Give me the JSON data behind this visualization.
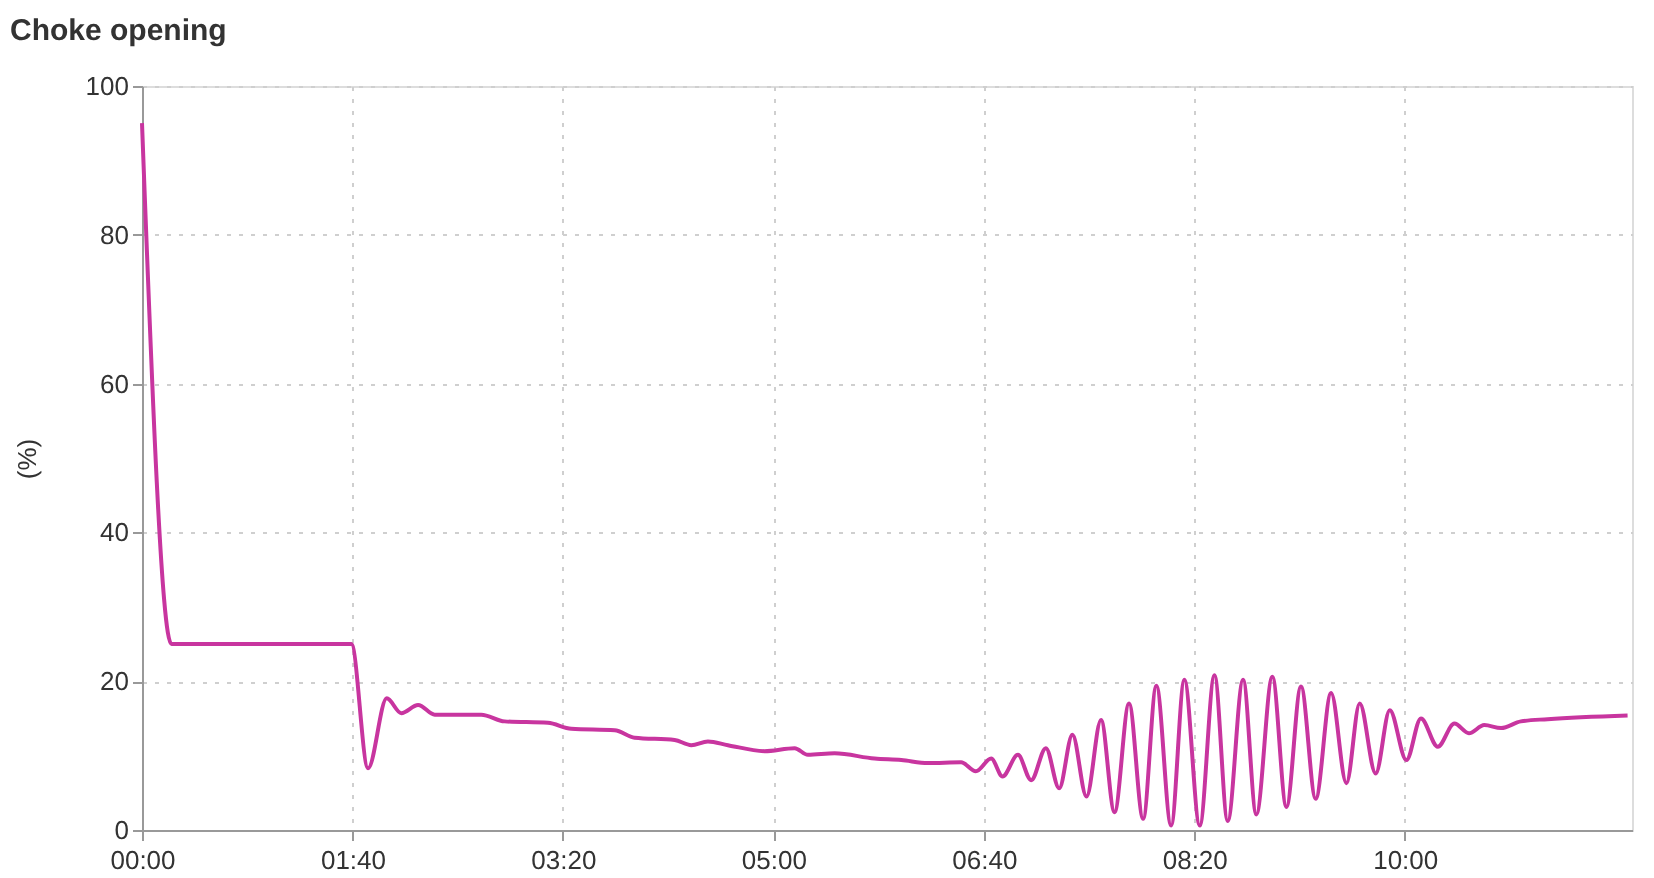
{
  "chart_data": {
    "type": "line",
    "title": "Choke opening",
    "ylabel": "(%)",
    "x": [
      0,
      14,
      99.5,
      107.4,
      116.3,
      123.2,
      131.2,
      139.1,
      161.2,
      172.3,
      192.9,
      204,
      224.6,
      234.1,
      253.1,
      261,
      268.9,
      278.4,
      295.8,
      310.1,
      316.4,
      329.1,
      348.1,
      360.8,
      373.4,
      389.2,
      396.2,
      403.5,
      408.9,
      416.2,
      422.5,
      429.5,
      435.8,
      442.1,
      448.8,
      455.7,
      462.1,
      469.0,
      475.7,
      482.0,
      489.0,
      495.3,
      502.6,
      509.6,
      515.9,
      523.2,
      529.5,
      537.1,
      543.8,
      550.7,
      557.7,
      565.0,
      572.3,
      578.6,
      586.2,
      592.9,
      600.8,
      607.7,
      615.7,
      623.6,
      630.5,
      637.8,
      645.8,
      655.2,
      667.9,
      705.9
    ],
    "series": [
      {
        "color": "#c8359f",
        "values": [
          95,
          25,
          25,
          8.3,
          17.7,
          15.7,
          16.8,
          15.5,
          15.5,
          14.6,
          14.4,
          13.6,
          13.4,
          12.4,
          12.1,
          11.4,
          11.9,
          11.4,
          10.6,
          11.0,
          10.1,
          10.3,
          9.6,
          9.4,
          9.0,
          9.1,
          7.9,
          9.6,
          7.2,
          10.1,
          6.7,
          11.0,
          5.6,
          12.8,
          4.5,
          14.8,
          2.4,
          17.0,
          1.5,
          19.4,
          0.6,
          20.2,
          0.6,
          20.8,
          1.2,
          20.2,
          2.1,
          20.6,
          3.1,
          19.3,
          4.2,
          18.4,
          6.3,
          17.0,
          7.6,
          16.1,
          9.4,
          15.0,
          11.2,
          14.3,
          13.0,
          14.1,
          13.7,
          14.6,
          14.9,
          15.4
        ]
      }
    ],
    "xlim": [
      0,
      708
    ],
    "xticks": [
      {
        "value": 0,
        "label": "00:00"
      },
      {
        "value": 100,
        "label": "01:40"
      },
      {
        "value": 200,
        "label": "03:20"
      },
      {
        "value": 300,
        "label": "05:00"
      },
      {
        "value": 400,
        "label": "06:40"
      },
      {
        "value": 500,
        "label": "08:20"
      },
      {
        "value": 600,
        "label": "10:00"
      }
    ],
    "ylim": [
      0,
      100
    ],
    "yticks": [
      0,
      20,
      40,
      60,
      80,
      100
    ],
    "grid": true,
    "legend": false,
    "marker": "none",
    "line_style": "solid"
  }
}
